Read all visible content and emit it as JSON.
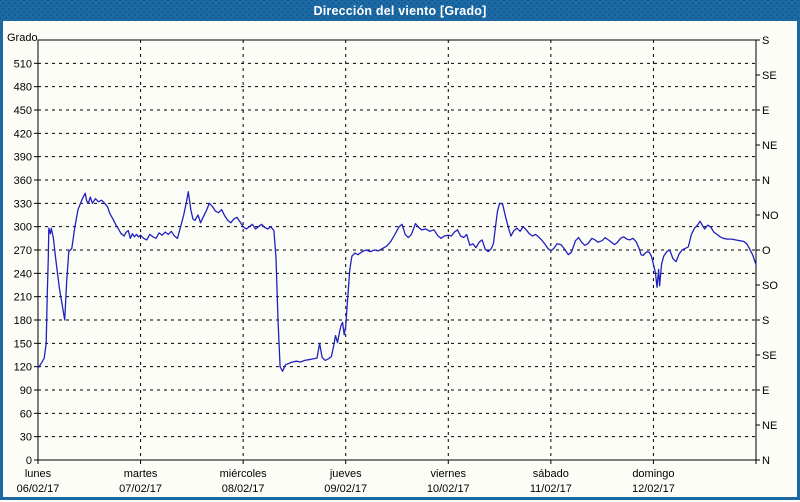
{
  "title": "Dirección del viento [Grado]",
  "colors": {
    "frame_blue": "#1c6aa5",
    "line_blue": "#2121bd",
    "grid_black": "#000000",
    "plot_bg": "#fdfdf8",
    "title_text": "#ffffff"
  },
  "chart_data": {
    "type": "line",
    "title": "Dirección del viento [Grado]",
    "ylabel_left": "Grado",
    "ylim": [
      0,
      540
    ],
    "y_left_tick_step": 30,
    "y_left_ticks": [
      0,
      30,
      60,
      90,
      120,
      150,
      180,
      210,
      240,
      270,
      300,
      330,
      360,
      390,
      420,
      450,
      480,
      510
    ],
    "y_right_ticks": [
      {
        "deg": 0,
        "label": "N"
      },
      {
        "deg": 45,
        "label": "NE"
      },
      {
        "deg": 90,
        "label": "E"
      },
      {
        "deg": 135,
        "label": "SE"
      },
      {
        "deg": 180,
        "label": "S"
      },
      {
        "deg": 225,
        "label": "SO"
      },
      {
        "deg": 270,
        "label": "O"
      },
      {
        "deg": 315,
        "label": "NO"
      },
      {
        "deg": 360,
        "label": "N"
      },
      {
        "deg": 405,
        "label": "NE"
      },
      {
        "deg": 450,
        "label": "E"
      },
      {
        "deg": 495,
        "label": "SE"
      },
      {
        "deg": 540,
        "label": "S"
      }
    ],
    "x_days": [
      {
        "name": "lunes",
        "date": "06/02/17"
      },
      {
        "name": "martes",
        "date": "07/02/17"
      },
      {
        "name": "miércoles",
        "date": "08/02/17"
      },
      {
        "name": "jueves",
        "date": "09/02/17"
      },
      {
        "name": "viernes",
        "date": "10/02/17"
      },
      {
        "name": "sábado",
        "date": "11/02/17"
      },
      {
        "name": "domingo",
        "date": "12/02/17"
      }
    ],
    "xlim_days": [
      0,
      7
    ],
    "grid": {
      "horizontal_step_deg": 30,
      "vertical": "day-boundaries",
      "style": "dashed"
    },
    "legend": "none",
    "series": [
      {
        "name": "Dirección del viento",
        "color": "#2121bd",
        "points": [
          [
            0.0,
            118
          ],
          [
            0.03,
            124
          ],
          [
            0.06,
            131
          ],
          [
            0.08,
            150
          ],
          [
            0.09,
            210
          ],
          [
            0.1,
            260
          ],
          [
            0.105,
            298
          ],
          [
            0.12,
            291
          ],
          [
            0.13,
            298
          ],
          [
            0.15,
            285
          ],
          [
            0.17,
            262
          ],
          [
            0.19,
            240
          ],
          [
            0.21,
            220
          ],
          [
            0.235,
            200
          ],
          [
            0.26,
            180
          ],
          [
            0.28,
            230
          ],
          [
            0.3,
            268
          ],
          [
            0.315,
            270
          ],
          [
            0.33,
            272
          ],
          [
            0.36,
            300
          ],
          [
            0.39,
            322
          ],
          [
            0.43,
            335
          ],
          [
            0.46,
            343
          ],
          [
            0.475,
            333
          ],
          [
            0.49,
            330
          ],
          [
            0.51,
            338
          ],
          [
            0.53,
            330
          ],
          [
            0.56,
            336
          ],
          [
            0.59,
            332
          ],
          [
            0.62,
            334
          ],
          [
            0.65,
            330
          ],
          [
            0.68,
            325
          ],
          [
            0.7,
            317
          ],
          [
            0.73,
            310
          ],
          [
            0.76,
            302
          ],
          [
            0.79,
            296
          ],
          [
            0.81,
            291
          ],
          [
            0.84,
            288
          ],
          [
            0.86,
            293
          ],
          [
            0.88,
            295
          ],
          [
            0.9,
            285
          ],
          [
            0.92,
            291
          ],
          [
            0.94,
            287
          ],
          [
            0.96,
            290
          ],
          [
            0.98,
            287
          ],
          [
            1.0,
            289
          ],
          [
            1.03,
            285
          ],
          [
            1.06,
            283
          ],
          [
            1.09,
            290
          ],
          [
            1.12,
            287
          ],
          [
            1.15,
            285
          ],
          [
            1.18,
            292
          ],
          [
            1.21,
            289
          ],
          [
            1.24,
            293
          ],
          [
            1.27,
            290
          ],
          [
            1.3,
            294
          ],
          [
            1.33,
            288
          ],
          [
            1.36,
            285
          ],
          [
            1.39,
            300
          ],
          [
            1.42,
            315
          ],
          [
            1.445,
            330
          ],
          [
            1.465,
            345
          ],
          [
            1.49,
            322
          ],
          [
            1.51,
            310
          ],
          [
            1.53,
            308
          ],
          [
            1.56,
            315
          ],
          [
            1.585,
            305
          ],
          [
            1.61,
            312
          ],
          [
            1.64,
            320
          ],
          [
            1.67,
            330
          ],
          [
            1.7,
            326
          ],
          [
            1.73,
            320
          ],
          [
            1.76,
            318
          ],
          [
            1.79,
            322
          ],
          [
            1.82,
            314
          ],
          [
            1.85,
            308
          ],
          [
            1.88,
            305
          ],
          [
            1.91,
            310
          ],
          [
            1.94,
            312
          ],
          [
            1.97,
            306
          ],
          [
            2.0,
            300
          ],
          [
            2.03,
            297
          ],
          [
            2.06,
            300
          ],
          [
            2.09,
            303
          ],
          [
            2.12,
            297
          ],
          [
            2.15,
            300
          ],
          [
            2.18,
            303
          ],
          [
            2.21,
            299
          ],
          [
            2.24,
            297
          ],
          [
            2.27,
            300
          ],
          [
            2.3,
            295
          ],
          [
            2.32,
            260
          ],
          [
            2.34,
            180
          ],
          [
            2.36,
            120
          ],
          [
            2.385,
            114
          ],
          [
            2.41,
            122
          ],
          [
            2.44,
            124
          ],
          [
            2.48,
            126
          ],
          [
            2.52,
            127
          ],
          [
            2.56,
            126
          ],
          [
            2.6,
            128
          ],
          [
            2.64,
            129
          ],
          [
            2.68,
            130
          ],
          [
            2.72,
            131
          ],
          [
            2.745,
            150
          ],
          [
            2.77,
            132
          ],
          [
            2.8,
            128
          ],
          [
            2.83,
            130
          ],
          [
            2.86,
            133
          ],
          [
            2.88,
            145
          ],
          [
            2.9,
            160
          ],
          [
            2.92,
            151
          ],
          [
            2.94,
            165
          ],
          [
            2.955,
            173
          ],
          [
            2.97,
            177
          ],
          [
            2.985,
            161
          ],
          [
            3.0,
            172
          ],
          [
            3.02,
            210
          ],
          [
            3.04,
            245
          ],
          [
            3.06,
            262
          ],
          [
            3.09,
            266
          ],
          [
            3.12,
            264
          ],
          [
            3.16,
            268
          ],
          [
            3.2,
            270
          ],
          [
            3.24,
            268
          ],
          [
            3.28,
            270
          ],
          [
            3.32,
            269
          ],
          [
            3.36,
            272
          ],
          [
            3.4,
            275
          ],
          [
            3.44,
            281
          ],
          [
            3.48,
            290
          ],
          [
            3.52,
            300
          ],
          [
            3.55,
            303
          ],
          [
            3.58,
            290
          ],
          [
            3.61,
            286
          ],
          [
            3.64,
            290
          ],
          [
            3.68,
            304
          ],
          [
            3.71,
            299
          ],
          [
            3.74,
            296
          ],
          [
            3.78,
            297
          ],
          [
            3.82,
            294
          ],
          [
            3.86,
            296
          ],
          [
            3.9,
            288
          ],
          [
            3.93,
            285
          ],
          [
            3.96,
            288
          ],
          [
            4.0,
            289
          ],
          [
            4.03,
            288
          ],
          [
            4.06,
            293
          ],
          [
            4.09,
            296
          ],
          [
            4.12,
            288
          ],
          [
            4.15,
            286
          ],
          [
            4.18,
            290
          ],
          [
            4.21,
            276
          ],
          [
            4.24,
            278
          ],
          [
            4.27,
            273
          ],
          [
            4.3,
            280
          ],
          [
            4.33,
            283
          ],
          [
            4.36,
            271
          ],
          [
            4.39,
            268
          ],
          [
            4.42,
            272
          ],
          [
            4.44,
            278
          ],
          [
            4.46,
            300
          ],
          [
            4.48,
            320
          ],
          [
            4.5,
            330
          ],
          [
            4.53,
            329
          ],
          [
            4.56,
            312
          ],
          [
            4.59,
            297
          ],
          [
            4.61,
            288
          ],
          [
            4.64,
            295
          ],
          [
            4.67,
            298
          ],
          [
            4.7,
            294
          ],
          [
            4.73,
            300
          ],
          [
            4.76,
            296
          ],
          [
            4.79,
            291
          ],
          [
            4.82,
            288
          ],
          [
            4.85,
            290
          ],
          [
            4.88,
            287
          ],
          [
            4.91,
            283
          ],
          [
            4.94,
            278
          ],
          [
            4.97,
            272
          ],
          [
            5.0,
            269
          ],
          [
            5.03,
            272
          ],
          [
            5.06,
            278
          ],
          [
            5.1,
            277
          ],
          [
            5.14,
            270
          ],
          [
            5.17,
            264
          ],
          [
            5.2,
            267
          ],
          [
            5.24,
            282
          ],
          [
            5.27,
            286
          ],
          [
            5.3,
            280
          ],
          [
            5.33,
            276
          ],
          [
            5.36,
            278
          ],
          [
            5.4,
            285
          ],
          [
            5.43,
            283
          ],
          [
            5.46,
            280
          ],
          [
            5.5,
            282
          ],
          [
            5.53,
            286
          ],
          [
            5.56,
            283
          ],
          [
            5.59,
            280
          ],
          [
            5.62,
            277
          ],
          [
            5.65,
            280
          ],
          [
            5.68,
            285
          ],
          [
            5.71,
            287
          ],
          [
            5.74,
            284
          ],
          [
            5.77,
            283
          ],
          [
            5.8,
            285
          ],
          [
            5.83,
            281
          ],
          [
            5.86,
            272
          ],
          [
            5.88,
            264
          ],
          [
            5.9,
            263
          ],
          [
            5.92,
            266
          ],
          [
            5.94,
            268
          ],
          [
            5.96,
            267
          ],
          [
            5.98,
            262
          ],
          [
            6.0,
            252
          ],
          [
            6.02,
            240
          ],
          [
            6.035,
            222
          ],
          [
            6.05,
            245
          ],
          [
            6.06,
            224
          ],
          [
            6.08,
            252
          ],
          [
            6.1,
            262
          ],
          [
            6.13,
            268
          ],
          [
            6.16,
            270
          ],
          [
            6.19,
            259
          ],
          [
            6.22,
            255
          ],
          [
            6.25,
            265
          ],
          [
            6.28,
            270
          ],
          [
            6.31,
            272
          ],
          [
            6.34,
            274
          ],
          [
            6.37,
            290
          ],
          [
            6.4,
            298
          ],
          [
            6.43,
            302
          ],
          [
            6.455,
            307
          ],
          [
            6.48,
            301
          ],
          [
            6.5,
            297
          ],
          [
            6.53,
            302
          ],
          [
            6.56,
            299
          ],
          [
            6.59,
            293
          ],
          [
            6.62,
            290
          ],
          [
            6.65,
            287
          ],
          [
            6.68,
            285
          ],
          [
            6.72,
            284
          ],
          [
            6.76,
            284
          ],
          [
            6.8,
            283
          ],
          [
            6.84,
            282
          ],
          [
            6.88,
            281
          ],
          [
            6.91,
            278
          ],
          [
            6.94,
            271
          ],
          [
            6.97,
            263
          ],
          [
            7.0,
            251
          ]
        ]
      }
    ]
  }
}
